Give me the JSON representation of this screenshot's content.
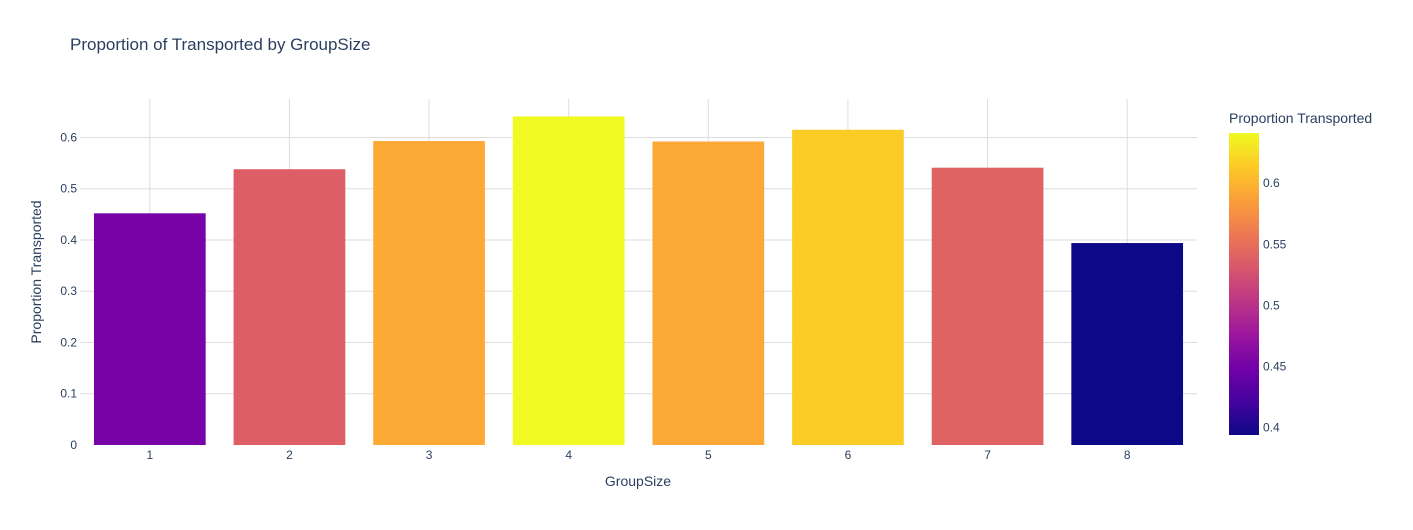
{
  "chart_data": {
    "type": "bar",
    "title": "Proportion of Transported by GroupSize",
    "xlabel": "GroupSize",
    "ylabel": "Proportion Transported",
    "categories": [
      "1",
      "2",
      "3",
      "4",
      "5",
      "6",
      "7",
      "8"
    ],
    "values": [
      0.452,
      0.538,
      0.593,
      0.641,
      0.592,
      0.615,
      0.541,
      0.394
    ],
    "ylim": [
      0,
      0.675
    ],
    "yticks": [
      0,
      0.1,
      0.2,
      0.3,
      0.4,
      0.5,
      0.6
    ],
    "ytick_labels": [
      "0",
      "0.1",
      "0.2",
      "0.3",
      "0.4",
      "0.5",
      "0.6"
    ],
    "grid": true,
    "colorbar": {
      "title": "Proportion Transported",
      "range": [
        0.394,
        0.641
      ],
      "ticks": [
        0.4,
        0.45,
        0.5,
        0.55,
        0.6
      ],
      "tick_labels": [
        "0.4",
        "0.45",
        "0.5",
        "0.55",
        "0.6"
      ],
      "colorscale": [
        "#0d0887",
        "#46039f",
        "#7201a8",
        "#9c179e",
        "#bd3786",
        "#d8576b",
        "#ed7953",
        "#fb9f3a",
        "#fdca26",
        "#f0f921"
      ]
    }
  }
}
